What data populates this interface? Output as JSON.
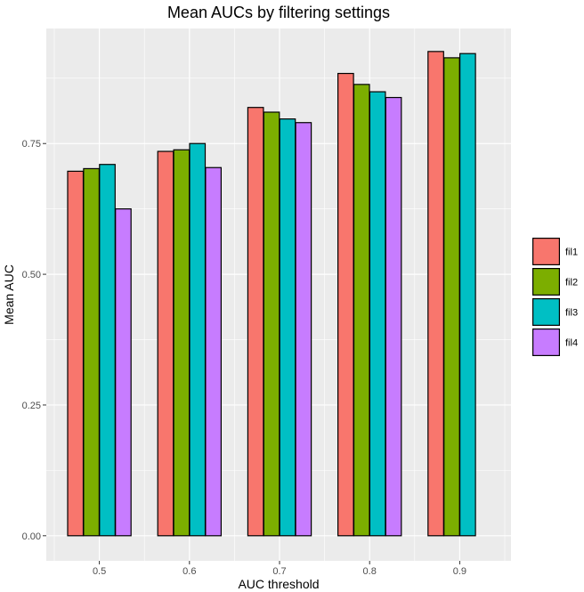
{
  "chart_data": {
    "type": "bar",
    "title": "Mean AUCs by filtering settings",
    "xlabel": "AUC threshold",
    "ylabel": "Mean AUC",
    "categories": [
      "0.5",
      "0.6",
      "0.7",
      "0.8",
      "0.9"
    ],
    "series": [
      {
        "name": "fil1",
        "color": "#F8766D",
        "values": [
          0.697,
          0.735,
          0.819,
          0.884,
          0.926
        ]
      },
      {
        "name": "fil2",
        "color": "#7CAE00",
        "values": [
          0.702,
          0.738,
          0.81,
          0.863,
          0.914
        ]
      },
      {
        "name": "fil3",
        "color": "#00BFC4",
        "values": [
          0.71,
          0.75,
          0.797,
          0.849,
          0.922
        ]
      },
      {
        "name": "fil4",
        "color": "#C77CFF",
        "values": [
          0.625,
          0.704,
          0.79,
          0.838,
          0.0
        ]
      }
    ],
    "ylim": [
      -0.048,
      0.97
    ],
    "yticks": [
      0.0,
      0.25,
      0.5,
      0.75
    ],
    "ytick_labels": [
      "0.00",
      "0.25",
      "0.50",
      "0.75"
    ],
    "grid": true,
    "panel_background": "#EBEBEB",
    "legend_position": "right"
  }
}
